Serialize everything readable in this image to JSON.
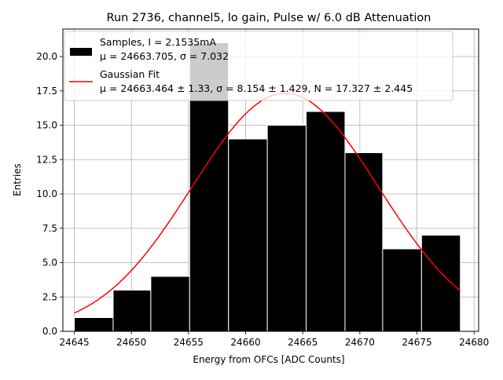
{
  "chart_data": {
    "type": "bar",
    "title": "Run 2736, channel5, lo gain, Pulse w/ 6.0 dB Attenuation",
    "xlabel": "Energy from OFCs [ADC Counts]",
    "ylabel": "Entries",
    "xlim": [
      24644.0,
      24680.4
    ],
    "ylim": [
      0,
      22.0
    ],
    "grid": true,
    "legend_position": "top-right",
    "xticks": [
      24645,
      24650,
      24655,
      24660,
      24665,
      24670,
      24675,
      24680
    ],
    "xtick_labels": [
      "24645",
      "24650",
      "24655",
      "24660",
      "24665",
      "24670",
      "24675",
      "24680"
    ],
    "yticks": [
      0,
      2.5,
      5,
      7.5,
      10,
      12.5,
      15,
      17.5,
      20
    ],
    "ytick_labels": [
      "0.0",
      "2.5",
      "5.0",
      "7.5",
      "10.0",
      "12.5",
      "15.0",
      "17.5",
      "20.0"
    ],
    "histogram": {
      "bin_edges": [
        24645.0,
        24648.4,
        24651.7,
        24655.1,
        24658.5,
        24661.9,
        24665.3,
        24668.7,
        24672.0,
        24675.4,
        24678.8
      ],
      "counts": [
        1,
        3,
        4,
        21,
        14,
        15,
        16,
        13,
        6,
        7
      ],
      "color": "#000000"
    },
    "fit": {
      "mu": 24663.464,
      "sigma": 8.154,
      "N": 17.327,
      "x_range": [
        24645.0,
        24678.8
      ],
      "color": "#ff0000"
    },
    "legend": [
      {
        "kind": "bar",
        "label_line1": "Samples, I = 2.1535mA",
        "label_line2": "μ = 24663.705, σ = 7.032",
        "color": "#000000"
      },
      {
        "kind": "line",
        "label_line1": "Gaussian Fit",
        "label_line2": "μ = 24663.464 ± 1.33, σ = 8.154 ± 1.429, N = 17.327 ± 2.445",
        "color": "#ff0000"
      }
    ]
  }
}
